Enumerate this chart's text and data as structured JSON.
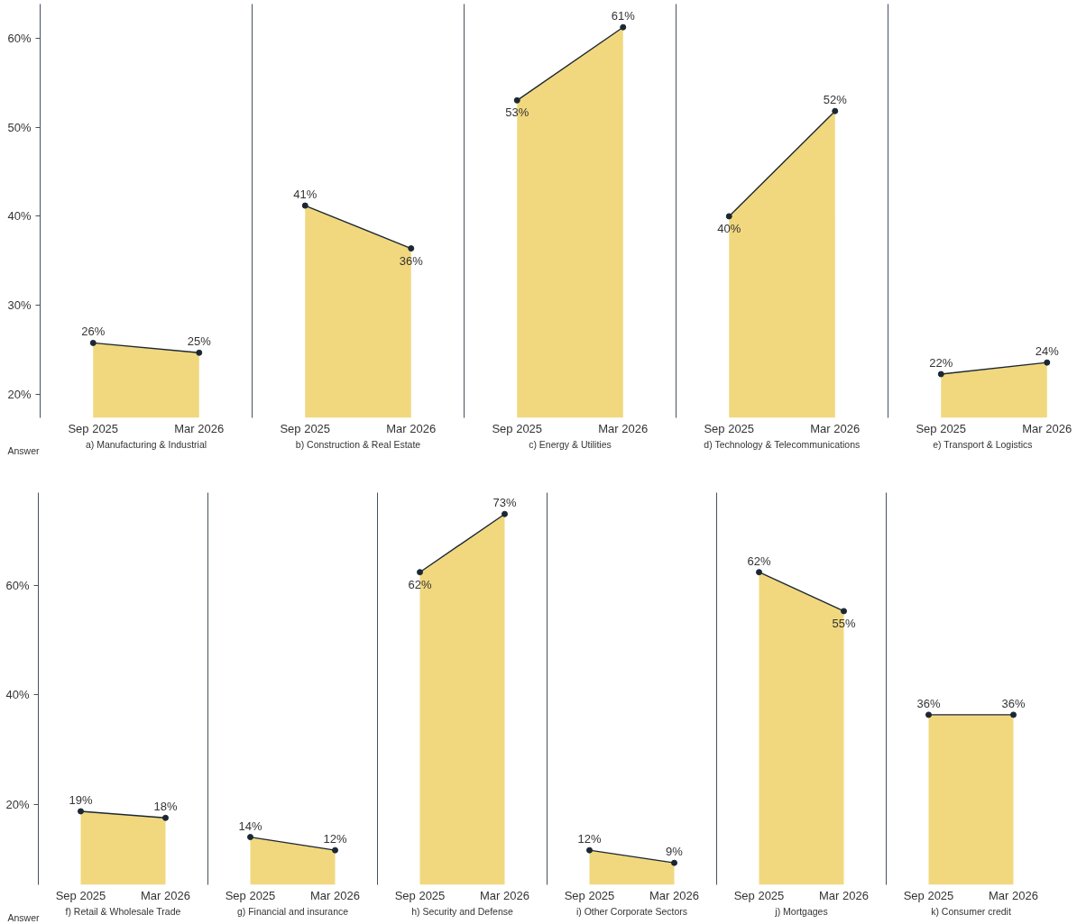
{
  "chart_data": [
    {
      "type": "area",
      "categories": [
        "Sep 2025",
        "Mar 2026"
      ],
      "values": [
        25.8,
        24.7
      ],
      "value_labels": [
        "26%",
        "25%"
      ],
      "color": "#ebc94c",
      "marker": "circle",
      "xlabel": "a) Manufacturing & Industrial",
      "ylim": [
        17.4,
        63.8
      ],
      "yticks": [
        {
          "value": 20,
          "label": "20%"
        },
        {
          "value": 30,
          "label": "30%"
        },
        {
          "value": 40,
          "label": "40%"
        },
        {
          "value": 50,
          "label": "50%"
        },
        {
          "value": 60,
          "label": "60%"
        }
      ],
      "annotations": [
        "Answer"
      ]
    },
    {
      "type": "area",
      "categories": [
        "Sep 2025",
        "Mar 2026"
      ],
      "values": [
        41.2,
        36.4
      ],
      "value_labels": [
        "41%",
        "36%"
      ],
      "color": "#ebc94c",
      "marker": "circle",
      "xlabel": "b) Construction & Real Estate",
      "ylim": [
        17.4,
        63.8
      ],
      "tick_labels": "x"
    },
    {
      "type": "area",
      "categories": [
        "Sep 2025",
        "Mar 2026"
      ],
      "values": [
        53.0,
        61.2
      ],
      "value_labels": [
        "53%",
        "61%"
      ],
      "color": "#ebc94c",
      "marker": "circle",
      "xlabel": "c) Energy & Utilities",
      "ylim": [
        17.4,
        63.8
      ],
      "tick_labels": "x"
    },
    {
      "type": "area",
      "categories": [
        "Sep 2025",
        "Mar 2026"
      ],
      "values": [
        40.0,
        51.8
      ],
      "value_labels": [
        "40%",
        "52%"
      ],
      "color": "#ebc94c",
      "marker": "circle",
      "xlabel": "d) Technology & Telecommunications",
      "ylim": [
        17.4,
        63.8
      ],
      "tick_labels": "x"
    },
    {
      "type": "area",
      "categories": [
        "Sep 2025",
        "Mar 2026"
      ],
      "values": [
        22.3,
        23.6
      ],
      "value_labels": [
        "22%",
        "24%"
      ],
      "color": "#ebc94c",
      "marker": "circle",
      "xlabel": "e) Transport & Logistics",
      "ylim": [
        17.4,
        63.8
      ],
      "tick_labels": "x"
    },
    {
      "type": "area",
      "categories": [
        "Sep 2025",
        "Mar 2026"
      ],
      "values": [
        18.8,
        17.6
      ],
      "value_labels": [
        "19%",
        "18%"
      ],
      "color": "#ebc94c",
      "marker": "circle",
      "xlabel": "f) Retail & Wholesale Trade",
      "ylim": [
        5.4,
        76.9
      ],
      "yticks": [
        {
          "value": 20,
          "label": "20%"
        },
        {
          "value": 40,
          "label": "40%"
        },
        {
          "value": 60,
          "label": "60%"
        }
      ],
      "annotations": [
        "Answer"
      ]
    },
    {
      "type": "area",
      "categories": [
        "Sep 2025",
        "Mar 2026"
      ],
      "values": [
        14.1,
        11.7
      ],
      "value_labels": [
        "14%",
        "12%"
      ],
      "color": "#ebc94c",
      "marker": "circle",
      "xlabel": "g) Financial and insurance",
      "ylim": [
        5.4,
        76.9
      ],
      "tick_labels": "x"
    },
    {
      "type": "area",
      "categories": [
        "Sep 2025",
        "Mar 2026"
      ],
      "values": [
        62.4,
        73.0
      ],
      "value_labels": [
        "62%",
        "73%"
      ],
      "color": "#ebc94c",
      "marker": "circle",
      "xlabel": "h) Security and Defense",
      "ylim": [
        5.4,
        76.9
      ],
      "tick_labels": "x"
    },
    {
      "type": "area",
      "categories": [
        "Sep 2025",
        "Mar 2026"
      ],
      "values": [
        11.7,
        9.4
      ],
      "value_labels": [
        "12%",
        "9%"
      ],
      "color": "#ebc94c",
      "marker": "circle",
      "xlabel": "i) Other Corporate Sectors",
      "ylim": [
        5.4,
        76.9
      ],
      "tick_labels": "x"
    },
    {
      "type": "area",
      "categories": [
        "Sep 2025",
        "Mar 2026"
      ],
      "values": [
        62.4,
        55.3
      ],
      "value_labels": [
        "62%",
        "55%"
      ],
      "color": "#ebc94c",
      "marker": "circle",
      "xlabel": "j) Mortgages",
      "ylim": [
        5.4,
        76.9
      ],
      "tick_labels": "x"
    },
    {
      "type": "area",
      "categories": [
        "Sep 2025",
        "Mar 2026"
      ],
      "values": [
        36.4,
        36.4
      ],
      "value_labels": [
        "36%",
        "36%"
      ],
      "color": "#ebc94c",
      "marker": "circle",
      "xlabel": "k) Consumer credit",
      "ylim": [
        5.4,
        76.9
      ],
      "tick_labels": "x"
    }
  ]
}
